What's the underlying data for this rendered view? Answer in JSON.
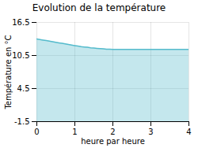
{
  "chart_data": {
    "type": "area",
    "title": "Evolution de la température",
    "xlabel": "heure par heure",
    "ylabel": "Température en °C",
    "x": [
      0,
      0.083,
      0.167,
      0.25,
      0.333,
      0.417,
      0.5,
      0.583,
      0.667,
      0.75,
      0.833,
      0.917,
      1.0,
      1.083,
      1.167,
      1.25,
      1.333,
      1.417,
      1.5,
      1.583,
      1.667,
      1.75,
      1.833,
      1.917,
      2.0,
      2.083,
      2.167,
      2.25,
      2.333,
      2.417,
      2.5,
      2.583,
      2.667,
      2.75,
      2.833,
      2.917,
      3.0,
      3.083,
      3.167,
      3.25,
      3.333,
      3.417,
      3.5,
      3.583,
      3.667,
      3.75,
      3.833,
      3.917,
      4.0
    ],
    "values": [
      13.5,
      13.4,
      13.3,
      13.2,
      13.1,
      13.0,
      12.9,
      12.8,
      12.7,
      12.6,
      12.5,
      12.4,
      12.3,
      12.2,
      12.1,
      12.05,
      12.0,
      11.9,
      11.85,
      11.8,
      11.75,
      11.7,
      11.65,
      11.65,
      11.6,
      11.6,
      11.6,
      11.6,
      11.6,
      11.6,
      11.6,
      11.6,
      11.6,
      11.6,
      11.6,
      11.6,
      11.6,
      11.6,
      11.6,
      11.6,
      11.6,
      11.6,
      11.6,
      11.6,
      11.6,
      11.6,
      11.6,
      11.6,
      11.6
    ],
    "color": "#55bbcc",
    "xlim": [
      0,
      4
    ],
    "xticks": [
      0,
      1,
      2,
      3,
      4
    ],
    "ylim": [
      -1.5,
      16.5
    ],
    "yticks": [
      -1.5,
      4.5,
      10.5,
      16.5
    ],
    "grid": true
  }
}
